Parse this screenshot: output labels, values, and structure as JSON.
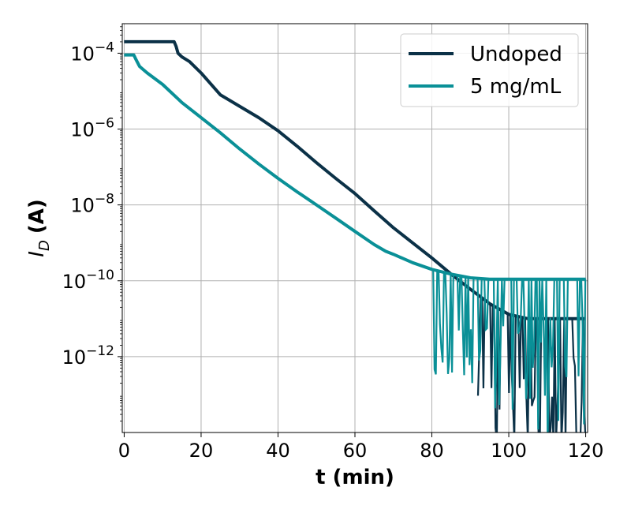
{
  "chart_data": {
    "type": "line",
    "title": "",
    "xlabel": "t (min)",
    "ylabel_main": "I",
    "ylabel_sub": "D",
    "ylabel_unit": "(A)",
    "xlim": [
      -0.5,
      120.5
    ],
    "ylim": [
      1e-14,
      0.0006
    ],
    "yscale": "log",
    "grid": true,
    "legend_position": "top-right",
    "x_ticks": [
      0,
      20,
      40,
      60,
      80,
      100,
      120
    ],
    "x_tick_labels": [
      "0",
      "20",
      "40",
      "60",
      "80",
      "100",
      "120"
    ],
    "y_ticks": [
      1e-12,
      1e-10,
      1e-08,
      1e-06,
      0.0001
    ],
    "y_tick_exponents": [
      "−12",
      "−10",
      "−8",
      "−6",
      "−4"
    ],
    "y_tick_base": "10",
    "series": [
      {
        "name": "Undoped",
        "color": "#0b3147",
        "x": [
          0,
          13,
          13.5,
          14,
          15,
          17,
          20,
          25,
          30,
          35,
          40,
          45,
          50,
          55,
          60,
          65,
          70,
          75,
          80,
          85,
          90,
          95,
          100,
          105,
          110,
          115,
          120
        ],
        "y": [
          0.0002,
          0.0002,
          0.00015,
          0.0001,
          8e-05,
          6e-05,
          3e-05,
          8e-06,
          4e-06,
          2e-06,
          9e-07,
          3.5e-07,
          1.3e-07,
          5e-08,
          2e-08,
          7e-09,
          2.5e-09,
          1e-09,
          4e-10,
          1.5e-10,
          6e-11,
          2.5e-11,
          1.3e-11,
          1e-11,
          1e-11,
          1e-11,
          1e-11
        ],
        "noise_start_x": 92
      },
      {
        "name": "5 mg/mL",
        "color": "#0a9097",
        "x": [
          0,
          2.5,
          3,
          4,
          6,
          10,
          15,
          20,
          25,
          30,
          35,
          40,
          45,
          50,
          55,
          60,
          65,
          68,
          70,
          75,
          80,
          85,
          90,
          95,
          100,
          105,
          110,
          115,
          120
        ],
        "y": [
          9e-05,
          9e-05,
          7e-05,
          4.5e-05,
          3e-05,
          1.5e-05,
          5e-06,
          2e-06,
          8e-07,
          3e-07,
          1.2e-07,
          5e-08,
          2.2e-08,
          1e-08,
          4.5e-09,
          2e-09,
          9e-10,
          6e-10,
          5e-10,
          3e-10,
          2e-10,
          1.5e-10,
          1.2e-10,
          1.1e-10,
          1.1e-10,
          1.1e-10,
          1.1e-10,
          1.1e-10,
          1.1e-10
        ],
        "noise_start_x": 80
      }
    ]
  }
}
